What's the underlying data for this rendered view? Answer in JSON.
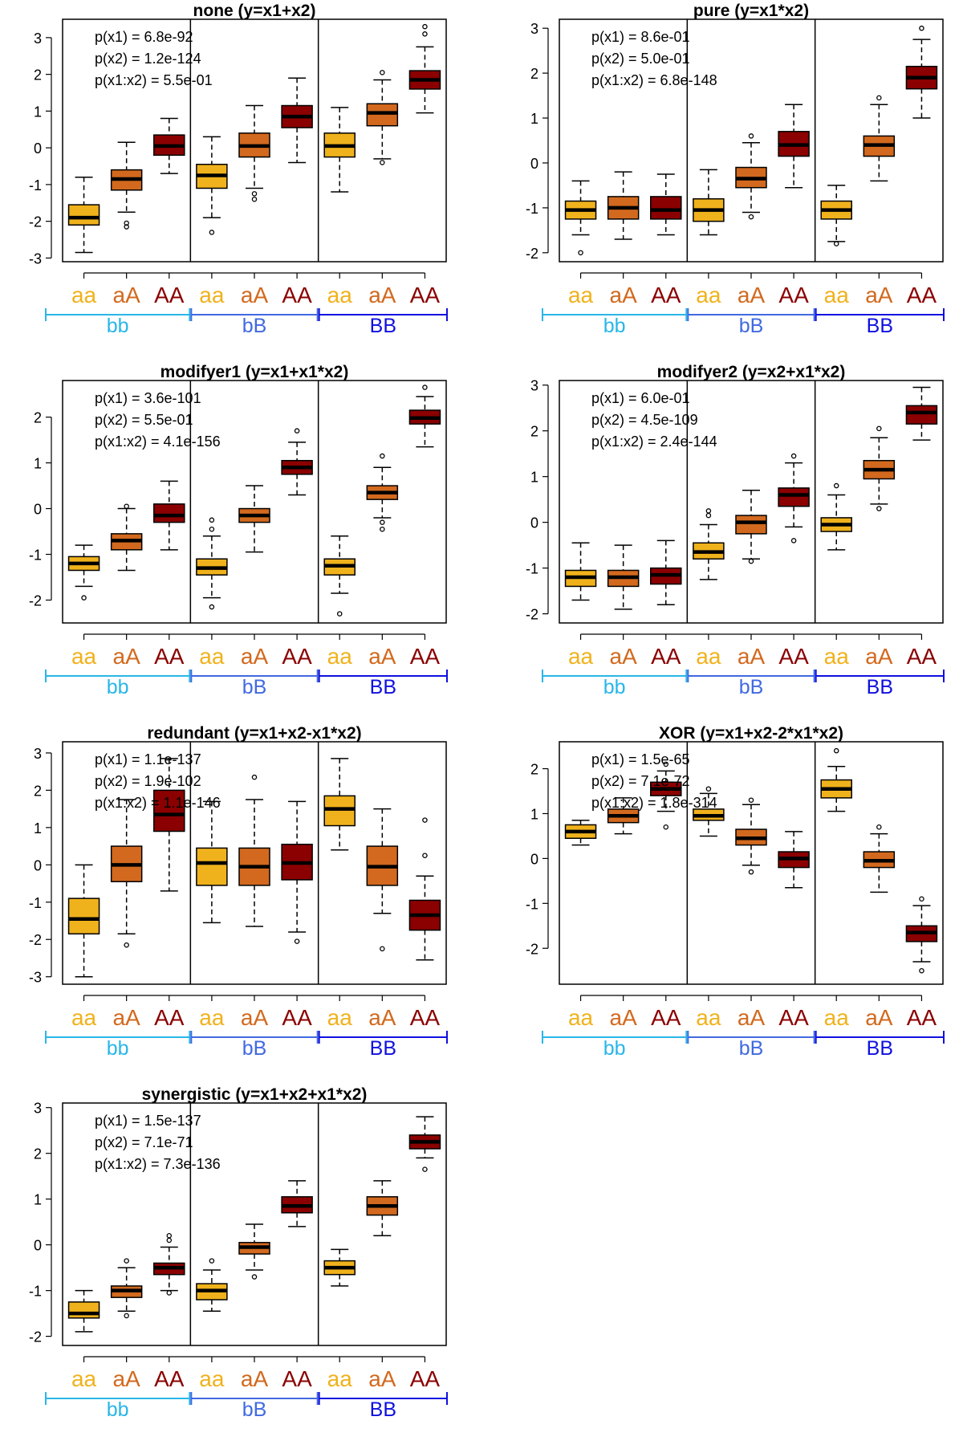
{
  "colors": {
    "aa": "#F0B21C",
    "aA": "#D2691E",
    "AA": "#8B0000",
    "bb": "#29B6E8",
    "bB": "#4169E1",
    "BB": "#1010E0"
  },
  "groups": [
    "aa",
    "aA",
    "AA"
  ],
  "subgroups": [
    "bb",
    "bB",
    "BB"
  ],
  "chart_data": [
    {
      "type": "boxplot",
      "title": "none (y=x1+x2)",
      "ylim": [
        -3.1,
        3.5
      ],
      "yticks": [
        -3,
        -2,
        -1,
        0,
        1,
        2,
        3
      ],
      "pvals": [
        "p(x1) =  6.8e-92",
        "p(x2) = 1.2e-124",
        "p(x1:x2) =  5.5e-01"
      ],
      "boxes": [
        {
          "wlo": -2.85,
          "q1": -2.1,
          "med": -1.9,
          "q3": -1.55,
          "whi": -0.8,
          "out": []
        },
        {
          "wlo": -1.75,
          "q1": -1.15,
          "med": -0.85,
          "q3": -0.6,
          "whi": 0.15,
          "out": [
            -2.05,
            -2.15
          ]
        },
        {
          "wlo": -0.7,
          "q1": -0.2,
          "med": 0.05,
          "q3": 0.35,
          "whi": 0.8,
          "out": []
        },
        {
          "wlo": -1.9,
          "q1": -1.1,
          "med": -0.75,
          "q3": -0.45,
          "whi": 0.3,
          "out": [
            -2.3
          ]
        },
        {
          "wlo": -1.1,
          "q1": -0.25,
          "med": 0.05,
          "q3": 0.4,
          "whi": 1.15,
          "out": [
            -1.25,
            -1.4
          ]
        },
        {
          "wlo": -0.4,
          "q1": 0.55,
          "med": 0.85,
          "q3": 1.15,
          "whi": 1.9,
          "out": []
        },
        {
          "wlo": -1.2,
          "q1": -0.25,
          "med": 0.05,
          "q3": 0.4,
          "whi": 1.1,
          "out": []
        },
        {
          "wlo": -0.3,
          "q1": 0.6,
          "med": 0.95,
          "q3": 1.2,
          "whi": 1.85,
          "out": [
            2.05,
            -0.4
          ]
        },
        {
          "wlo": 0.95,
          "q1": 1.6,
          "med": 1.85,
          "q3": 2.1,
          "whi": 2.75,
          "out": [
            3.1,
            3.3
          ]
        }
      ]
    },
    {
      "type": "boxplot",
      "title": "pure (y=x1*x2)",
      "ylim": [
        -2.2,
        3.2
      ],
      "yticks": [
        -2,
        -1,
        0,
        1,
        2,
        3
      ],
      "pvals": [
        "p(x1) =  8.6e-01",
        "p(x2) =  5.0e-01",
        "p(x1:x2) = 6.8e-148"
      ],
      "boxes": [
        {
          "wlo": -1.6,
          "q1": -1.25,
          "med": -1.05,
          "q3": -0.85,
          "whi": -0.4,
          "out": [
            -2.0
          ]
        },
        {
          "wlo": -1.7,
          "q1": -1.25,
          "med": -1.0,
          "q3": -0.75,
          "whi": -0.2,
          "out": []
        },
        {
          "wlo": -1.6,
          "q1": -1.25,
          "med": -1.05,
          "q3": -0.75,
          "whi": -0.25,
          "out": []
        },
        {
          "wlo": -1.6,
          "q1": -1.3,
          "med": -1.05,
          "q3": -0.8,
          "whi": -0.15,
          "out": []
        },
        {
          "wlo": -1.1,
          "q1": -0.55,
          "med": -0.35,
          "q3": -0.1,
          "whi": 0.45,
          "out": [
            0.6,
            -1.2
          ]
        },
        {
          "wlo": -0.55,
          "q1": 0.15,
          "med": 0.4,
          "q3": 0.7,
          "whi": 1.3,
          "out": []
        },
        {
          "wlo": -1.75,
          "q1": -1.25,
          "med": -1.05,
          "q3": -0.85,
          "whi": -0.5,
          "out": [
            -1.8
          ]
        },
        {
          "wlo": -0.4,
          "q1": 0.15,
          "med": 0.4,
          "q3": 0.6,
          "whi": 1.3,
          "out": [
            1.45
          ]
        },
        {
          "wlo": 1.0,
          "q1": 1.65,
          "med": 1.9,
          "q3": 2.15,
          "whi": 2.75,
          "out": [
            3.0
          ]
        }
      ]
    },
    {
      "type": "boxplot",
      "title": "modifyer1 (y=x1+x1*x2)",
      "ylim": [
        -2.5,
        2.8
      ],
      "yticks": [
        -2,
        -1,
        0,
        1,
        2
      ],
      "pvals": [
        "p(x1) = 3.6e-101",
        "p(x2) =  5.5e-01",
        "p(x1:x2) = 4.1e-156"
      ],
      "boxes": [
        {
          "wlo": -1.7,
          "q1": -1.35,
          "med": -1.2,
          "q3": -1.05,
          "whi": -0.8,
          "out": [
            -1.95
          ]
        },
        {
          "wlo": -1.35,
          "q1": -0.9,
          "med": -0.7,
          "q3": -0.55,
          "whi": 0.0,
          "out": [
            0.05
          ]
        },
        {
          "wlo": -0.9,
          "q1": -0.3,
          "med": -0.15,
          "q3": 0.1,
          "whi": 0.6,
          "out": []
        },
        {
          "wlo": -1.95,
          "q1": -1.45,
          "med": -1.3,
          "q3": -1.1,
          "whi": -0.6,
          "out": [
            -0.25,
            -0.45,
            -2.15
          ]
        },
        {
          "wlo": -0.95,
          "q1": -0.3,
          "med": -0.15,
          "q3": 0.0,
          "whi": 0.5,
          "out": []
        },
        {
          "wlo": 0.3,
          "q1": 0.75,
          "med": 0.9,
          "q3": 1.05,
          "whi": 1.45,
          "out": [
            1.7
          ]
        },
        {
          "wlo": -1.85,
          "q1": -1.45,
          "med": -1.25,
          "q3": -1.1,
          "whi": -0.6,
          "out": [
            -2.3
          ]
        },
        {
          "wlo": -0.2,
          "q1": 0.2,
          "med": 0.35,
          "q3": 0.5,
          "whi": 0.9,
          "out": [
            1.15,
            -0.3,
            -0.45
          ]
        },
        {
          "wlo": 1.35,
          "q1": 1.85,
          "med": 1.98,
          "q3": 2.15,
          "whi": 2.45,
          "out": [
            2.65
          ]
        }
      ]
    },
    {
      "type": "boxplot",
      "title": "modifyer2 (y=x2+x1*x2)",
      "ylim": [
        -2.2,
        3.1
      ],
      "yticks": [
        -2,
        -1,
        0,
        1,
        2,
        3
      ],
      "pvals": [
        "p(x1) =  6.0e-01",
        "p(x2) = 4.5e-109",
        "p(x1:x2) = 2.4e-144"
      ],
      "boxes": [
        {
          "wlo": -1.7,
          "q1": -1.4,
          "med": -1.2,
          "q3": -1.05,
          "whi": -0.45,
          "out": []
        },
        {
          "wlo": -1.9,
          "q1": -1.4,
          "med": -1.2,
          "q3": -1.05,
          "whi": -0.5,
          "out": []
        },
        {
          "wlo": -1.8,
          "q1": -1.35,
          "med": -1.15,
          "q3": -1.0,
          "whi": -0.4,
          "out": []
        },
        {
          "wlo": -1.25,
          "q1": -0.8,
          "med": -0.65,
          "q3": -0.45,
          "whi": -0.05,
          "out": [
            0.15,
            0.25
          ]
        },
        {
          "wlo": -0.8,
          "q1": -0.25,
          "med": 0.0,
          "q3": 0.15,
          "whi": 0.7,
          "out": [
            -0.85
          ]
        },
        {
          "wlo": -0.1,
          "q1": 0.35,
          "med": 0.6,
          "q3": 0.75,
          "whi": 1.3,
          "out": [
            1.45,
            -0.4
          ]
        },
        {
          "wlo": -0.6,
          "q1": -0.2,
          "med": -0.05,
          "q3": 0.1,
          "whi": 0.6,
          "out": [
            0.8
          ]
        },
        {
          "wlo": 0.4,
          "q1": 0.95,
          "med": 1.15,
          "q3": 1.35,
          "whi": 1.85,
          "out": [
            2.05,
            0.3
          ]
        },
        {
          "wlo": 1.8,
          "q1": 2.15,
          "med": 2.4,
          "q3": 2.55,
          "whi": 2.95,
          "out": []
        }
      ]
    },
    {
      "type": "boxplot",
      "title": "redundant (y=x1+x2-x1*x2)",
      "ylim": [
        -3.2,
        3.3
      ],
      "yticks": [
        -3,
        -2,
        -1,
        0,
        1,
        2,
        3
      ],
      "pvals": [
        "p(x1) = 1.1e-137",
        "p(x2) = 1.9e-102",
        "p(x1:x2) = 1.1e-146"
      ],
      "boxes": [
        {
          "wlo": -3.0,
          "q1": -1.85,
          "med": -1.45,
          "q3": -0.9,
          "whi": 0.0,
          "out": []
        },
        {
          "wlo": -1.85,
          "q1": -0.45,
          "med": 0.0,
          "q3": 0.5,
          "whi": 1.75,
          "out": [
            -2.15
          ]
        },
        {
          "wlo": -0.7,
          "q1": 0.9,
          "med": 1.35,
          "q3": 2.0,
          "whi": 2.85,
          "out": []
        },
        {
          "wlo": -1.55,
          "q1": -0.55,
          "med": 0.05,
          "q3": 0.45,
          "whi": 1.7,
          "out": []
        },
        {
          "wlo": -1.65,
          "q1": -0.55,
          "med": -0.05,
          "q3": 0.45,
          "whi": 1.75,
          "out": [
            2.35
          ]
        },
        {
          "wlo": -1.8,
          "q1": -0.4,
          "med": 0.05,
          "q3": 0.55,
          "whi": 1.7,
          "out": [
            -2.05
          ]
        },
        {
          "wlo": 0.4,
          "q1": 1.05,
          "med": 1.5,
          "q3": 1.85,
          "whi": 2.85,
          "out": []
        },
        {
          "wlo": -1.3,
          "q1": -0.55,
          "med": -0.05,
          "q3": 0.5,
          "whi": 1.5,
          "out": [
            -2.25
          ]
        },
        {
          "wlo": -2.55,
          "q1": -1.75,
          "med": -1.35,
          "q3": -0.95,
          "whi": -0.3,
          "out": [
            0.25,
            1.2
          ]
        }
      ]
    },
    {
      "type": "boxplot",
      "title": "XOR (y=x1+x2-2*x1*x2)",
      "ylim": [
        -2.8,
        2.6
      ],
      "yticks": [
        -2,
        -1,
        0,
        1,
        2
      ],
      "pvals": [
        "p(x1) =  1.5e-65",
        "p(x2) =  7.1e-72",
        "p(x1:x2) = 1.8e-314"
      ],
      "boxes": [
        {
          "wlo": 0.3,
          "q1": 0.45,
          "med": 0.6,
          "q3": 0.75,
          "whi": 0.85,
          "out": []
        },
        {
          "wlo": 0.55,
          "q1": 0.8,
          "med": 0.95,
          "q3": 1.1,
          "whi": 1.35,
          "out": []
        },
        {
          "wlo": 1.05,
          "q1": 1.4,
          "med": 1.55,
          "q3": 1.7,
          "whi": 1.95,
          "out": [
            0.7,
            2.1
          ]
        },
        {
          "wlo": 0.5,
          "q1": 0.85,
          "med": 0.95,
          "q3": 1.1,
          "whi": 1.45,
          "out": [
            1.55
          ]
        },
        {
          "wlo": -0.15,
          "q1": 0.3,
          "med": 0.45,
          "q3": 0.65,
          "whi": 1.2,
          "out": [
            -0.3,
            1.3
          ]
        },
        {
          "wlo": -0.65,
          "q1": -0.2,
          "med": 0.0,
          "q3": 0.15,
          "whi": 0.6,
          "out": []
        },
        {
          "wlo": 1.05,
          "q1": 1.35,
          "med": 1.55,
          "q3": 1.75,
          "whi": 2.05,
          "out": [
            2.4
          ]
        },
        {
          "wlo": -0.75,
          "q1": -0.2,
          "med": -0.05,
          "q3": 0.15,
          "whi": 0.55,
          "out": [
            0.7
          ]
        },
        {
          "wlo": -2.3,
          "q1": -1.85,
          "med": -1.65,
          "q3": -1.5,
          "whi": -1.05,
          "out": [
            -0.9,
            -2.5
          ]
        }
      ]
    },
    {
      "type": "boxplot",
      "title": "synergistic (y=x1+x2+x1*x2)",
      "ylim": [
        -2.2,
        3.1
      ],
      "yticks": [
        -2,
        -1,
        0,
        1,
        2,
        3
      ],
      "pvals": [
        "p(x1) = 1.5e-137",
        "p(x2) =  7.1e-71",
        "p(x1:x2) = 7.3e-136"
      ],
      "boxes": [
        {
          "wlo": -1.9,
          "q1": -1.6,
          "med": -1.5,
          "q3": -1.25,
          "whi": -1.0,
          "out": []
        },
        {
          "wlo": -1.45,
          "q1": -1.15,
          "med": -1.0,
          "q3": -0.9,
          "whi": -0.5,
          "out": [
            -0.35,
            -1.55
          ]
        },
        {
          "wlo": -1.0,
          "q1": -0.65,
          "med": -0.5,
          "q3": -0.4,
          "whi": -0.05,
          "out": [
            0.1,
            0.2,
            -1.05
          ]
        },
        {
          "wlo": -1.45,
          "q1": -1.2,
          "med": -1.0,
          "q3": -0.85,
          "whi": -0.55,
          "out": [
            -0.35
          ]
        },
        {
          "wlo": -0.55,
          "q1": -0.2,
          "med": -0.05,
          "q3": 0.05,
          "whi": 0.45,
          "out": [
            -0.7
          ]
        },
        {
          "wlo": 0.4,
          "q1": 0.7,
          "med": 0.85,
          "q3": 1.05,
          "whi": 1.4,
          "out": []
        },
        {
          "wlo": -0.9,
          "q1": -0.65,
          "med": -0.5,
          "q3": -0.35,
          "whi": -0.1,
          "out": []
        },
        {
          "wlo": 0.2,
          "q1": 0.65,
          "med": 0.85,
          "q3": 1.05,
          "whi": 1.4,
          "out": []
        },
        {
          "wlo": 1.9,
          "q1": 2.1,
          "med": 2.25,
          "q3": 2.4,
          "whi": 2.8,
          "out": [
            1.65
          ]
        }
      ]
    }
  ]
}
